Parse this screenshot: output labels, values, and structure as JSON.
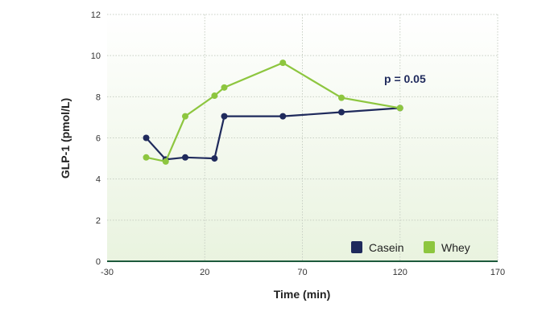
{
  "chart_data": {
    "type": "line",
    "xlabel": "Time (min)",
    "ylabel": "GLP-1 (pmol/L)",
    "xlim": [
      -30,
      170
    ],
    "ylim": [
      0,
      12
    ],
    "xticks": [
      -30,
      20,
      70,
      120,
      170
    ],
    "yticks": [
      0,
      2,
      4,
      6,
      8,
      10,
      12
    ],
    "grid": true,
    "legend_placement": "bottom-right",
    "annotation": "p = 0.05",
    "series": [
      {
        "name": "Casein",
        "color": "#1f2a5c",
        "x": [
          -10,
          0,
          10,
          25,
          30,
          60,
          90,
          120
        ],
        "y": [
          6.0,
          4.95,
          5.05,
          5.0,
          7.05,
          7.05,
          7.25,
          7.45
        ]
      },
      {
        "name": "Whey",
        "color": "#8dc63f",
        "x": [
          -10,
          0,
          10,
          25,
          30,
          60,
          90,
          120
        ],
        "y": [
          5.05,
          4.85,
          7.05,
          8.05,
          8.45,
          9.65,
          7.95,
          7.45
        ]
      }
    ]
  }
}
